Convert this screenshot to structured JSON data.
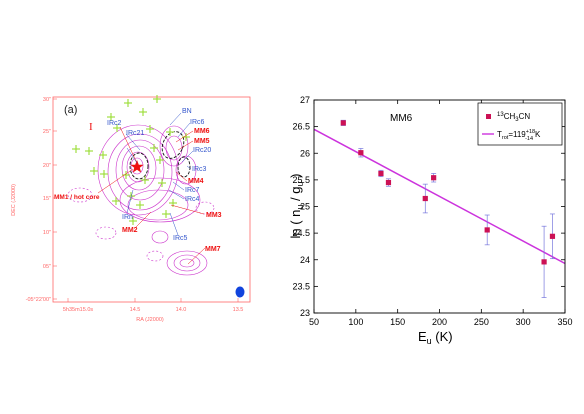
{
  "left_panel": {
    "panel_label": "(a)",
    "dec_axis_label": "DEC (J2000)",
    "ra_axis_label": "RA (J2000)",
    "dec_ticks": [
      "30\"",
      "25\"",
      "20\"",
      "15\"",
      "10\"",
      "05\"",
      "-05°22'00\""
    ],
    "ra_ticks": [
      "5h35m15.0s",
      "14.5",
      "14.0",
      "13.5"
    ],
    "marker_I": "I",
    "labels_blue": [
      "BN",
      "IRc2",
      "IRc21",
      "IRc6",
      "IRc20",
      "IRc3",
      "IRc7",
      "IRc4",
      "IRn",
      "IRc5"
    ],
    "labels_red": [
      "MM6",
      "MM5",
      "MM4",
      "MM1 / hot core",
      "MM3",
      "MM2",
      "MM7"
    ],
    "colors": {
      "contour": "#cc33cc",
      "cross": "#99dd33",
      "label_blue": "#3355cc",
      "label_red": "#ee1111",
      "beam": "#1144dd",
      "axis": "#ff6666"
    }
  },
  "chart_data": {
    "type": "scatter",
    "title": "MM6",
    "xlabel": "E_u (K)",
    "ylabel": "ln ( n_u / g_u )",
    "xlim": [
      50,
      350
    ],
    "ylim": [
      23,
      27
    ],
    "x_ticks": [
      50,
      100,
      150,
      200,
      250,
      300,
      350
    ],
    "y_ticks": [
      23,
      23.5,
      24,
      24.5,
      25,
      25.5,
      26,
      26.5,
      27
    ],
    "grid": false,
    "legend_position": "top-right",
    "series": [
      {
        "name": "13CH3CN",
        "color": "#cc1155",
        "points": [
          {
            "x": 85,
            "y": 26.57,
            "err": 0.05
          },
          {
            "x": 106,
            "y": 26.01,
            "err": 0.08
          },
          {
            "x": 130,
            "y": 25.62,
            "err": 0.06
          },
          {
            "x": 139,
            "y": 25.45,
            "err": 0.07
          },
          {
            "x": 183,
            "y": 25.15,
            "err": 0.27
          },
          {
            "x": 193,
            "y": 25.54,
            "err": 0.08
          },
          {
            "x": 257,
            "y": 24.56,
            "err": 0.28
          },
          {
            "x": 325,
            "y": 23.96,
            "err": 0.67
          },
          {
            "x": 335,
            "y": 24.44,
            "err": 0.42
          }
        ]
      }
    ],
    "fit": {
      "name": "T_rot=119+18-14 K",
      "color": "#cc33dd",
      "x": [
        50,
        350
      ],
      "y": [
        26.45,
        23.93
      ]
    },
    "legend_entries": [
      {
        "iso": "13",
        "main": "CH",
        "sub": "3",
        "tail": "CN"
      },
      {
        "prefix": "T",
        "sub": "rot",
        "eq": "=119",
        "sup_err": "+18",
        "sub_err": "-14",
        "unit": "K"
      }
    ]
  }
}
